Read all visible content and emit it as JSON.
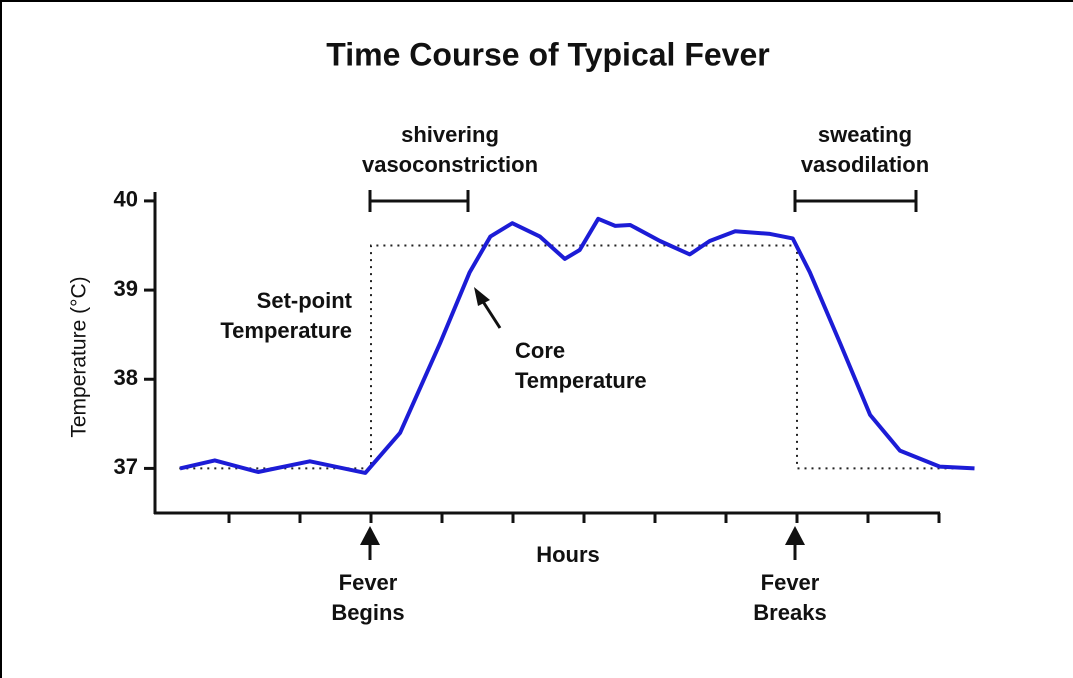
{
  "chart_data": {
    "type": "line",
    "title": "Time Course of Typical Fever",
    "ylabel": "Temperature (°C)",
    "xlabel": "Hours",
    "xlim": [
      0,
      11
    ],
    "xticks": [
      1,
      2,
      3,
      4,
      5,
      6,
      7,
      8,
      9,
      10,
      11
    ],
    "ylim": [
      36.5,
      40.1
    ],
    "yticks": [
      37,
      38,
      39,
      40
    ],
    "series": [
      {
        "name": "Core Temperature",
        "color": "#1c1cd6",
        "style": "solid",
        "x": [
          0.31,
          0.8,
          1.41,
          2.14,
          2.92,
          3.41,
          3.97,
          4.39,
          4.68,
          4.99,
          5.38,
          5.73,
          5.94,
          6.2,
          6.44,
          6.65,
          7.07,
          7.49,
          7.77,
          8.13,
          8.62,
          8.94,
          9.18,
          9.61,
          10.03,
          10.45,
          11.01,
          11.5
        ],
        "values": [
          37.0,
          37.09,
          36.96,
          37.08,
          36.95,
          37.4,
          38.4,
          39.2,
          39.6,
          39.75,
          39.6,
          39.35,
          39.45,
          39.8,
          39.72,
          39.73,
          39.55,
          39.4,
          39.55,
          39.66,
          39.63,
          39.58,
          39.2,
          38.4,
          37.6,
          37.2,
          37.02,
          37.0
        ]
      },
      {
        "name": "Set-point Temperature",
        "color": "#222222",
        "style": "dotted",
        "x": [
          0.3,
          3,
          3,
          9,
          9,
          11.5
        ],
        "values": [
          37,
          37,
          39.5,
          39.5,
          37,
          37
        ]
      }
    ],
    "annotations": [
      {
        "lines": [
          "shivering",
          "vasoconstriction"
        ]
      },
      {
        "lines": [
          "sweating",
          "vasodilation"
        ]
      },
      {
        "lines": [
          "Set-point",
          "Temperature"
        ]
      },
      {
        "lines": [
          "Core",
          "Temperature"
        ]
      },
      {
        "lines": [
          "Fever",
          "Begins"
        ]
      },
      {
        "lines": [
          "Fever",
          "Breaks"
        ]
      }
    ]
  }
}
